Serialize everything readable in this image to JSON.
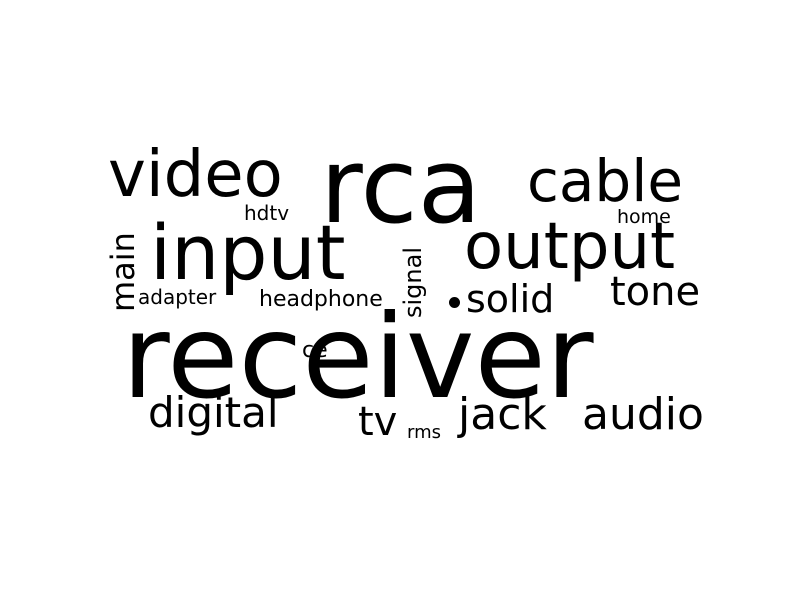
{
  "word_cloud": {
    "text_color": "#000000",
    "background": "#ffffff",
    "words": [
      {
        "text": "receiver"
      },
      {
        "text": "rca"
      },
      {
        "text": "video"
      },
      {
        "text": "cable"
      },
      {
        "text": "input"
      },
      {
        "text": "output"
      },
      {
        "text": "main"
      },
      {
        "text": "hdtv"
      },
      {
        "text": "home"
      },
      {
        "text": "signal"
      },
      {
        "text": "adapter"
      },
      {
        "text": "headphone"
      },
      {
        "text": "solid"
      },
      {
        "text": "tone"
      },
      {
        "text": "ce"
      },
      {
        "text": "digital"
      },
      {
        "text": "tv"
      },
      {
        "text": "rms"
      },
      {
        "text": "jack"
      },
      {
        "text": "audio"
      }
    ]
  }
}
